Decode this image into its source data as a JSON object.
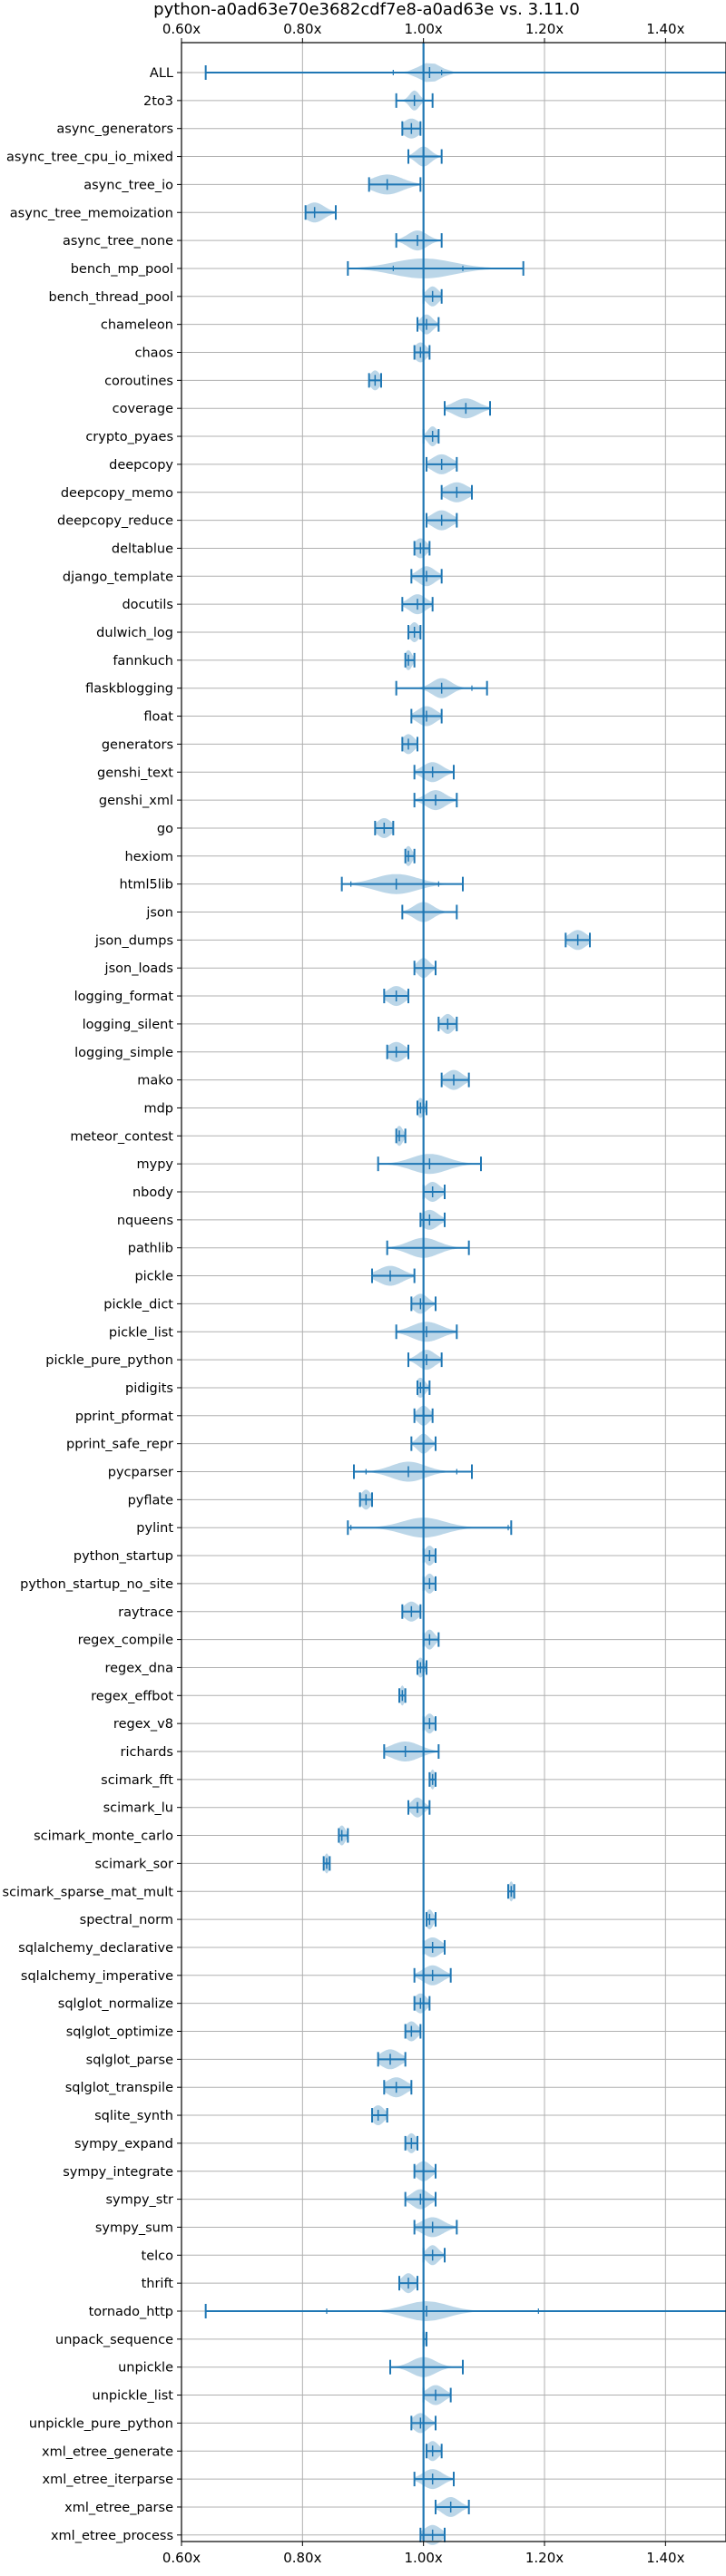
{
  "chart_data": {
    "type": "violin",
    "orientation": "horizontal",
    "title": "python-a0ad63e70e3682cdf7e8-a0ad63e vs. 3.11.0",
    "xlabel": "",
    "ylabel": "",
    "xlim": [
      0.6,
      1.5
    ],
    "xticks": [
      {
        "value": 0.6,
        "label": "0.60x"
      },
      {
        "value": 0.8,
        "label": "0.80x"
      },
      {
        "value": 1.0,
        "label": "1.00x"
      },
      {
        "value": 1.2,
        "label": "1.20x"
      },
      {
        "value": 1.4,
        "label": "1.40x"
      }
    ],
    "reference_line": 1.0,
    "grid": true,
    "color": "#1f77b4",
    "benchmarks": [
      {
        "name": "ALL",
        "min": 0.64,
        "max": 1.55,
        "median": 1.01,
        "spread": 0.018,
        "outliers": [
          0.95,
          1.03
        ]
      },
      {
        "name": "2to3",
        "min": 0.955,
        "max": 1.015,
        "median": 0.985,
        "spread": 0.008,
        "outliers": []
      },
      {
        "name": "async_generators",
        "min": 0.965,
        "max": 0.995,
        "median": 0.98,
        "spread": 0.014,
        "outliers": []
      },
      {
        "name": "async_tree_cpu_io_mixed",
        "min": 0.975,
        "max": 1.03,
        "median": 1.0,
        "spread": 0.012,
        "outliers": []
      },
      {
        "name": "async_tree_io",
        "min": 0.91,
        "max": 0.995,
        "median": 0.94,
        "spread": 0.025,
        "outliers": []
      },
      {
        "name": "async_tree_memoization",
        "min": 0.805,
        "max": 0.855,
        "median": 0.82,
        "spread": 0.016,
        "outliers": []
      },
      {
        "name": "async_tree_none",
        "min": 0.955,
        "max": 1.03,
        "median": 0.99,
        "spread": 0.016,
        "outliers": []
      },
      {
        "name": "bench_mp_pool",
        "min": 0.875,
        "max": 1.165,
        "median": 1.0,
        "spread": 0.05,
        "outliers": [
          0.95,
          1.065
        ]
      },
      {
        "name": "bench_thread_pool",
        "min": 1.0,
        "max": 1.03,
        "median": 1.015,
        "spread": 0.01,
        "outliers": []
      },
      {
        "name": "chameleon",
        "min": 0.99,
        "max": 1.025,
        "median": 1.005,
        "spread": 0.01,
        "outliers": []
      },
      {
        "name": "chaos",
        "min": 0.985,
        "max": 1.01,
        "median": 0.995,
        "spread": 0.01,
        "outliers": []
      },
      {
        "name": "coroutines",
        "min": 0.91,
        "max": 0.93,
        "median": 0.92,
        "spread": 0.008,
        "outliers": []
      },
      {
        "name": "coverage",
        "min": 1.035,
        "max": 1.11,
        "median": 1.07,
        "spread": 0.02,
        "outliers": []
      },
      {
        "name": "crypto_pyaes",
        "min": 1.0,
        "max": 1.025,
        "median": 1.015,
        "spread": 0.008,
        "outliers": []
      },
      {
        "name": "deepcopy",
        "min": 1.005,
        "max": 1.055,
        "median": 1.03,
        "spread": 0.016,
        "outliers": []
      },
      {
        "name": "deepcopy_memo",
        "min": 1.03,
        "max": 1.08,
        "median": 1.055,
        "spread": 0.018,
        "outliers": []
      },
      {
        "name": "deepcopy_reduce",
        "min": 1.005,
        "max": 1.055,
        "median": 1.03,
        "spread": 0.016,
        "outliers": []
      },
      {
        "name": "deltablue",
        "min": 0.985,
        "max": 1.01,
        "median": 0.995,
        "spread": 0.01,
        "outliers": []
      },
      {
        "name": "django_template",
        "min": 0.98,
        "max": 1.03,
        "median": 1.005,
        "spread": 0.014,
        "outliers": []
      },
      {
        "name": "docutils",
        "min": 0.965,
        "max": 1.015,
        "median": 0.99,
        "spread": 0.014,
        "outliers": []
      },
      {
        "name": "dulwich_log",
        "min": 0.975,
        "max": 0.995,
        "median": 0.985,
        "spread": 0.008,
        "outliers": []
      },
      {
        "name": "fannkuch",
        "min": 0.97,
        "max": 0.985,
        "median": 0.975,
        "spread": 0.006,
        "outliers": []
      },
      {
        "name": "flaskblogging",
        "min": 0.955,
        "max": 1.105,
        "median": 1.03,
        "spread": 0.016,
        "outliers": [
          1.08
        ]
      },
      {
        "name": "float",
        "min": 0.98,
        "max": 1.03,
        "median": 1.005,
        "spread": 0.015,
        "outliers": []
      },
      {
        "name": "generators",
        "min": 0.965,
        "max": 0.99,
        "median": 0.975,
        "spread": 0.01,
        "outliers": []
      },
      {
        "name": "genshi_text",
        "min": 0.985,
        "max": 1.05,
        "median": 1.015,
        "spread": 0.016,
        "outliers": []
      },
      {
        "name": "genshi_xml",
        "min": 0.985,
        "max": 1.055,
        "median": 1.02,
        "spread": 0.016,
        "outliers": []
      },
      {
        "name": "go",
        "min": 0.92,
        "max": 0.95,
        "median": 0.935,
        "spread": 0.012,
        "outliers": []
      },
      {
        "name": "hexiom",
        "min": 0.97,
        "max": 0.985,
        "median": 0.975,
        "spread": 0.006,
        "outliers": []
      },
      {
        "name": "html5lib",
        "min": 0.865,
        "max": 1.065,
        "median": 0.955,
        "spread": 0.035,
        "outliers": [
          0.88,
          1.025
        ]
      },
      {
        "name": "json",
        "min": 0.965,
        "max": 1.055,
        "median": 1.0,
        "spread": 0.016,
        "outliers": []
      },
      {
        "name": "json_dumps",
        "min": 1.235,
        "max": 1.275,
        "median": 1.255,
        "spread": 0.014,
        "outliers": []
      },
      {
        "name": "json_loads",
        "min": 0.985,
        "max": 1.02,
        "median": 1.0,
        "spread": 0.01,
        "outliers": []
      },
      {
        "name": "logging_format",
        "min": 0.935,
        "max": 0.975,
        "median": 0.955,
        "spread": 0.014,
        "outliers": []
      },
      {
        "name": "logging_silent",
        "min": 1.025,
        "max": 1.055,
        "median": 1.04,
        "spread": 0.01,
        "outliers": []
      },
      {
        "name": "logging_simple",
        "min": 0.94,
        "max": 0.975,
        "median": 0.955,
        "spread": 0.014,
        "outliers": []
      },
      {
        "name": "mako",
        "min": 1.03,
        "max": 1.075,
        "median": 1.05,
        "spread": 0.014,
        "outliers": []
      },
      {
        "name": "mdp",
        "min": 0.99,
        "max": 1.005,
        "median": 0.995,
        "spread": 0.006,
        "outliers": []
      },
      {
        "name": "meteor_contest",
        "min": 0.955,
        "max": 0.97,
        "median": 0.96,
        "spread": 0.006,
        "outliers": []
      },
      {
        "name": "mypy",
        "min": 0.925,
        "max": 1.095,
        "median": 1.01,
        "spread": 0.03,
        "outliers": []
      },
      {
        "name": "nbody",
        "min": 1.0,
        "max": 1.035,
        "median": 1.015,
        "spread": 0.012,
        "outliers": []
      },
      {
        "name": "nqueens",
        "min": 0.995,
        "max": 1.035,
        "median": 1.01,
        "spread": 0.014,
        "outliers": []
      },
      {
        "name": "pathlib",
        "min": 0.94,
        "max": 1.075,
        "median": 1.0,
        "spread": 0.025,
        "outliers": []
      },
      {
        "name": "pickle",
        "min": 0.915,
        "max": 0.985,
        "median": 0.945,
        "spread": 0.02,
        "outliers": []
      },
      {
        "name": "pickle_dict",
        "min": 0.98,
        "max": 1.02,
        "median": 0.995,
        "spread": 0.012,
        "outliers": []
      },
      {
        "name": "pickle_list",
        "min": 0.955,
        "max": 1.055,
        "median": 1.005,
        "spread": 0.024,
        "outliers": []
      },
      {
        "name": "pickle_pure_python",
        "min": 0.975,
        "max": 1.03,
        "median": 1.005,
        "spread": 0.014,
        "outliers": []
      },
      {
        "name": "pidigits",
        "min": 0.99,
        "max": 1.01,
        "median": 0.995,
        "spread": 0.008,
        "outliers": []
      },
      {
        "name": "pprint_pformat",
        "min": 0.985,
        "max": 1.015,
        "median": 1.0,
        "spread": 0.01,
        "outliers": []
      },
      {
        "name": "pprint_safe_repr",
        "min": 0.98,
        "max": 1.02,
        "median": 1.0,
        "spread": 0.01,
        "outliers": []
      },
      {
        "name": "pycparser",
        "min": 0.885,
        "max": 1.08,
        "median": 0.975,
        "spread": 0.028,
        "outliers": [
          0.905,
          1.055
        ]
      },
      {
        "name": "pyflate",
        "min": 0.895,
        "max": 0.915,
        "median": 0.905,
        "spread": 0.008,
        "outliers": []
      },
      {
        "name": "pylint",
        "min": 0.875,
        "max": 1.145,
        "median": 1.0,
        "spread": 0.035,
        "outliers": [
          0.88,
          1.14
        ]
      },
      {
        "name": "python_startup",
        "min": 1.0,
        "max": 1.02,
        "median": 1.01,
        "spread": 0.008,
        "outliers": []
      },
      {
        "name": "python_startup_no_site",
        "min": 1.0,
        "max": 1.02,
        "median": 1.01,
        "spread": 0.008,
        "outliers": []
      },
      {
        "name": "raytrace",
        "min": 0.965,
        "max": 0.995,
        "median": 0.98,
        "spread": 0.012,
        "outliers": []
      },
      {
        "name": "regex_compile",
        "min": 1.0,
        "max": 1.025,
        "median": 1.01,
        "spread": 0.008,
        "outliers": []
      },
      {
        "name": "regex_dna",
        "min": 0.99,
        "max": 1.005,
        "median": 0.995,
        "spread": 0.006,
        "outliers": []
      },
      {
        "name": "regex_effbot",
        "min": 0.96,
        "max": 0.97,
        "median": 0.965,
        "spread": 0.004,
        "outliers": []
      },
      {
        "name": "regex_v8",
        "min": 1.0,
        "max": 1.02,
        "median": 1.01,
        "spread": 0.008,
        "outliers": []
      },
      {
        "name": "richards",
        "min": 0.935,
        "max": 1.025,
        "median": 0.97,
        "spread": 0.024,
        "outliers": []
      },
      {
        "name": "scimark_fft",
        "min": 1.01,
        "max": 1.02,
        "median": 1.015,
        "spread": 0.004,
        "outliers": []
      },
      {
        "name": "scimark_lu",
        "min": 0.975,
        "max": 1.01,
        "median": 0.99,
        "spread": 0.01,
        "outliers": []
      },
      {
        "name": "scimark_monte_carlo",
        "min": 0.86,
        "max": 0.875,
        "median": 0.865,
        "spread": 0.006,
        "outliers": []
      },
      {
        "name": "scimark_sor",
        "min": 0.835,
        "max": 0.845,
        "median": 0.84,
        "spread": 0.004,
        "outliers": []
      },
      {
        "name": "scimark_sparse_mat_mult",
        "min": 1.14,
        "max": 1.15,
        "median": 1.145,
        "spread": 0.004,
        "outliers": []
      },
      {
        "name": "spectral_norm",
        "min": 1.005,
        "max": 1.02,
        "median": 1.01,
        "spread": 0.006,
        "outliers": []
      },
      {
        "name": "sqlalchemy_declarative",
        "min": 1.0,
        "max": 1.035,
        "median": 1.015,
        "spread": 0.014,
        "outliers": []
      },
      {
        "name": "sqlalchemy_imperative",
        "min": 0.985,
        "max": 1.045,
        "median": 1.015,
        "spread": 0.016,
        "outliers": []
      },
      {
        "name": "sqlglot_normalize",
        "min": 0.985,
        "max": 1.01,
        "median": 0.995,
        "spread": 0.01,
        "outliers": []
      },
      {
        "name": "sqlglot_optimize",
        "min": 0.97,
        "max": 0.995,
        "median": 0.98,
        "spread": 0.01,
        "outliers": []
      },
      {
        "name": "sqlglot_parse",
        "min": 0.925,
        "max": 0.97,
        "median": 0.945,
        "spread": 0.016,
        "outliers": []
      },
      {
        "name": "sqlglot_transpile",
        "min": 0.935,
        "max": 0.98,
        "median": 0.955,
        "spread": 0.016,
        "outliers": []
      },
      {
        "name": "sqlite_synth",
        "min": 0.915,
        "max": 0.94,
        "median": 0.925,
        "spread": 0.01,
        "outliers": []
      },
      {
        "name": "sympy_expand",
        "min": 0.97,
        "max": 0.99,
        "median": 0.98,
        "spread": 0.008,
        "outliers": []
      },
      {
        "name": "sympy_integrate",
        "min": 0.985,
        "max": 1.02,
        "median": 1.0,
        "spread": 0.012,
        "outliers": []
      },
      {
        "name": "sympy_str",
        "min": 0.97,
        "max": 1.02,
        "median": 0.995,
        "spread": 0.014,
        "outliers": []
      },
      {
        "name": "sympy_sum",
        "min": 0.985,
        "max": 1.055,
        "median": 1.015,
        "spread": 0.018,
        "outliers": []
      },
      {
        "name": "telco",
        "min": 1.0,
        "max": 1.035,
        "median": 1.015,
        "spread": 0.01,
        "outliers": []
      },
      {
        "name": "thrift",
        "min": 0.96,
        "max": 0.99,
        "median": 0.975,
        "spread": 0.01,
        "outliers": []
      },
      {
        "name": "tornado_http",
        "min": 0.64,
        "max": 1.55,
        "median": 1.005,
        "spread": 0.035,
        "outliers": [
          0.84,
          1.19
        ]
      },
      {
        "name": "unpack_sequence",
        "min": 1.0,
        "max": 1.005,
        "median": 1.0,
        "spread": 0.003,
        "outliers": []
      },
      {
        "name": "unpickle",
        "min": 0.945,
        "max": 1.065,
        "median": 1.0,
        "spread": 0.02,
        "outliers": []
      },
      {
        "name": "unpickle_list",
        "min": 1.0,
        "max": 1.045,
        "median": 1.02,
        "spread": 0.014,
        "outliers": []
      },
      {
        "name": "unpickle_pure_python",
        "min": 0.98,
        "max": 1.02,
        "median": 0.995,
        "spread": 0.012,
        "outliers": []
      },
      {
        "name": "xml_etree_generate",
        "min": 1.005,
        "max": 1.03,
        "median": 1.015,
        "spread": 0.01,
        "outliers": []
      },
      {
        "name": "xml_etree_iterparse",
        "min": 0.985,
        "max": 1.05,
        "median": 1.015,
        "spread": 0.016,
        "outliers": []
      },
      {
        "name": "xml_etree_parse",
        "min": 1.02,
        "max": 1.075,
        "median": 1.045,
        "spread": 0.014,
        "outliers": []
      },
      {
        "name": "xml_etree_process",
        "min": 0.995,
        "max": 1.035,
        "median": 1.015,
        "spread": 0.014,
        "outliers": []
      }
    ]
  }
}
